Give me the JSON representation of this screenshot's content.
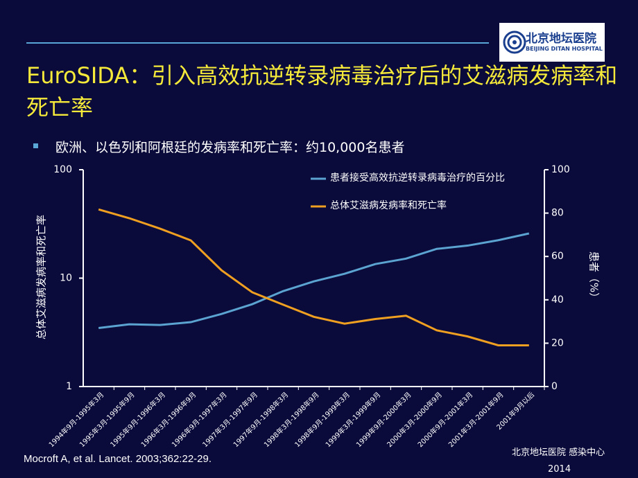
{
  "logo": {
    "name": "北京地坛医院",
    "name_en": "BEIJING DITAN HOSPITAL"
  },
  "title": "EuroSIDA：引入高效抗逆转录病毒治疗后的艾滋病发病率和死亡率",
  "bullet": "欧洲、以色列和阿根廷的发病率和死亡率：约10,000名患者",
  "chart_data": {
    "type": "line",
    "y_label": "总体艾滋病发病率和死亡率",
    "y2_label": "患者（%）",
    "categories": [
      "1994年9月-1995年3月",
      "1995年3月-1995年9月",
      "1995年9月-1996年3月",
      "1996年3月-1996年9月",
      "1996年9月-1997年3月",
      "1997年3月-1997年9月",
      "1997年9月-1998年3月",
      "1998年3月-1998年9月",
      "1998年9月-1999年3月",
      "1999年3月-1999年9月",
      "1999年9月-2000年3月",
      "2000年3月-2000年9月",
      "2000年9月-2001年3月",
      "2001年3月-2001年9月",
      "2001年9月以后"
    ],
    "series": [
      {
        "name": "患者接受高效抗逆转录病毒治疗的百分比",
        "color": "#5ba3d0",
        "axis": "y2",
        "values": [
          27,
          28.7,
          28.4,
          29.7,
          33.5,
          38,
          44,
          48.5,
          52,
          56.5,
          59,
          63.5,
          65,
          67.5,
          70.6
        ]
      },
      {
        "name": "总体艾滋病发病率和死亡率",
        "color": "#f0a020",
        "axis": "y",
        "values": [
          43,
          35.7,
          28.6,
          22.3,
          11.8,
          7.4,
          5.7,
          4.4,
          3.8,
          4.2,
          4.5,
          3.3,
          2.9,
          2.4,
          2.4
        ]
      }
    ],
    "yscale": "log",
    "ylim": [
      1,
      100
    ],
    "yticks": [
      1,
      10,
      100
    ],
    "y2lim": [
      0,
      100
    ],
    "y2ticks": [
      0,
      20,
      40,
      60,
      80,
      100
    ]
  },
  "footer": {
    "citation": "Mocroft A, et al. Lancet. 2003;362:22-29.",
    "dept": "北京地坛医院 感染中心",
    "year": "2014"
  }
}
